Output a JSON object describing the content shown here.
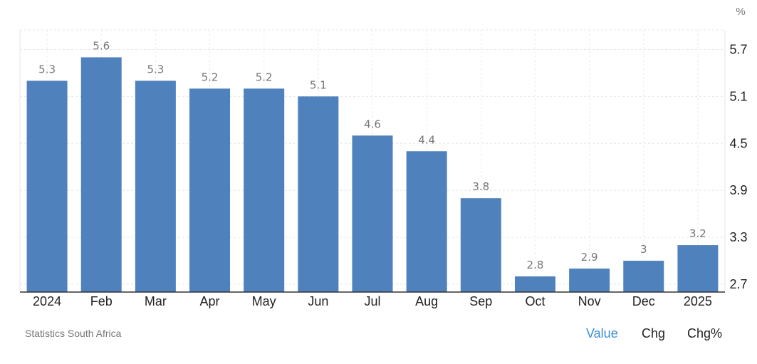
{
  "chart_data": {
    "type": "bar",
    "categories": [
      "2024",
      "Feb",
      "Mar",
      "Apr",
      "May",
      "Jun",
      "Jul",
      "Aug",
      "Sep",
      "Oct",
      "Nov",
      "Dec",
      "2025"
    ],
    "values": [
      5.3,
      5.6,
      5.3,
      5.2,
      5.2,
      5.1,
      4.6,
      4.4,
      3.8,
      2.8,
      2.9,
      3,
      3.2
    ],
    "value_labels": [
      "5.3",
      "5.6",
      "5.3",
      "5.2",
      "5.2",
      "5.1",
      "4.6",
      "4.4",
      "3.8",
      "2.8",
      "2.9",
      "3",
      "3.2"
    ],
    "y_ticks": [
      "5.7",
      "5.1",
      "4.5",
      "3.9",
      "3.3",
      "2.7"
    ],
    "y_unit": "%",
    "ylim": [
      2.6,
      5.95
    ],
    "y_axis_side": "right",
    "grid": true,
    "bar_color": "#4f81bd"
  },
  "source": "Statistics South Africa",
  "tabs": {
    "value": "Value",
    "chg": "Chg",
    "chg_pct": "Chg%",
    "active_color": "#3a8ed8"
  }
}
